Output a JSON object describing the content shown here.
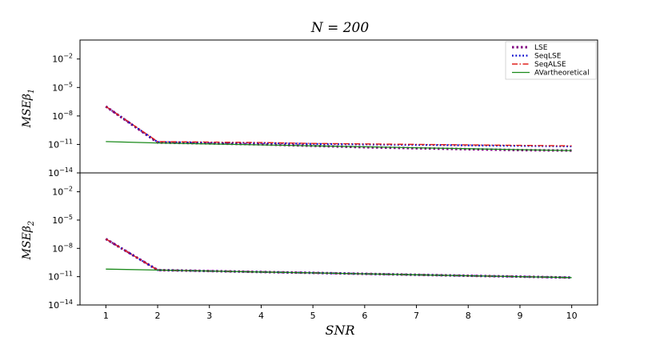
{
  "figure": {
    "title": "N = 200",
    "xlabel": "SNR"
  },
  "chart_data": [
    {
      "type": "line",
      "ylabel": "MSE β1",
      "yscale": "log",
      "ylim_exponents": [
        -14,
        0
      ],
      "yticks": [
        {
          "exp": -14,
          "label": "10",
          "sup": "−14"
        },
        {
          "exp": -11,
          "label": "10",
          "sup": "−11"
        },
        {
          "exp": -8,
          "label": "10",
          "sup": "−8"
        },
        {
          "exp": -5,
          "label": "10",
          "sup": "−5"
        },
        {
          "exp": -2,
          "label": "10",
          "sup": "−2"
        }
      ],
      "x": [
        1,
        2,
        3,
        4,
        5,
        6,
        7,
        8,
        9,
        10
      ],
      "series": [
        {
          "name": "LSE",
          "color": "#800080",
          "style": "dotted-thick",
          "log10_values": [
            -7.0,
            -10.8,
            -10.9,
            -11.0,
            -11.15,
            -11.3,
            -11.4,
            -11.5,
            -11.6,
            -11.65
          ]
        },
        {
          "name": "SeqLSE",
          "color": "#0000cc",
          "style": "dotted",
          "log10_values": [
            -7.0,
            -10.75,
            -10.8,
            -10.85,
            -10.95,
            -11.0,
            -11.05,
            -11.1,
            -11.15,
            -11.2
          ]
        },
        {
          "name": "SeqALSE",
          "color": "#e0201b",
          "style": "dashdot",
          "log10_values": [
            -7.0,
            -10.7,
            -10.75,
            -10.8,
            -10.9,
            -10.95,
            -11.0,
            -11.05,
            -11.1,
            -11.15
          ]
        },
        {
          "name": "AVartheoretical",
          "color": "#1a8a1a",
          "style": "solid",
          "log10_values": [
            -10.7,
            -10.85,
            -10.95,
            -11.05,
            -11.15,
            -11.25,
            -11.35,
            -11.45,
            -11.55,
            -11.65
          ]
        }
      ]
    },
    {
      "type": "line",
      "ylabel": "MSE β2",
      "yscale": "log",
      "ylim_exponents": [
        -14,
        0
      ],
      "yticks": [
        {
          "exp": -14,
          "label": "10",
          "sup": "−14"
        },
        {
          "exp": -11,
          "label": "10",
          "sup": "−11"
        },
        {
          "exp": -8,
          "label": "10",
          "sup": "−8"
        },
        {
          "exp": -5,
          "label": "10",
          "sup": "−5"
        },
        {
          "exp": -2,
          "label": "10",
          "sup": "−2"
        }
      ],
      "x": [
        1,
        2,
        3,
        4,
        5,
        6,
        7,
        8,
        9,
        10
      ],
      "series": [
        {
          "name": "LSE",
          "color": "#800080",
          "style": "dotted-thick",
          "log10_values": [
            -7.0,
            -10.3,
            -10.4,
            -10.5,
            -10.6,
            -10.7,
            -10.8,
            -10.9,
            -11.0,
            -11.1
          ]
        },
        {
          "name": "SeqLSE",
          "color": "#0000cc",
          "style": "dotted",
          "log10_values": [
            -7.0,
            -10.3,
            -10.4,
            -10.5,
            -10.6,
            -10.7,
            -10.8,
            -10.9,
            -11.0,
            -11.1
          ]
        },
        {
          "name": "SeqALSE",
          "color": "#e0201b",
          "style": "dashdot",
          "log10_values": [
            -7.0,
            -10.3,
            -10.4,
            -10.5,
            -10.6,
            -10.7,
            -10.8,
            -10.9,
            -11.0,
            -11.1
          ]
        },
        {
          "name": "AVartheoretical",
          "color": "#1a8a1a",
          "style": "solid",
          "log10_values": [
            -10.2,
            -10.3,
            -10.4,
            -10.5,
            -10.6,
            -10.7,
            -10.8,
            -10.9,
            -11.0,
            -11.1
          ]
        }
      ]
    }
  ],
  "legend": {
    "placement": "top-right",
    "entries": [
      "LSE",
      "SeqLSE",
      "SeqALSE",
      "AVartheoretical"
    ]
  }
}
